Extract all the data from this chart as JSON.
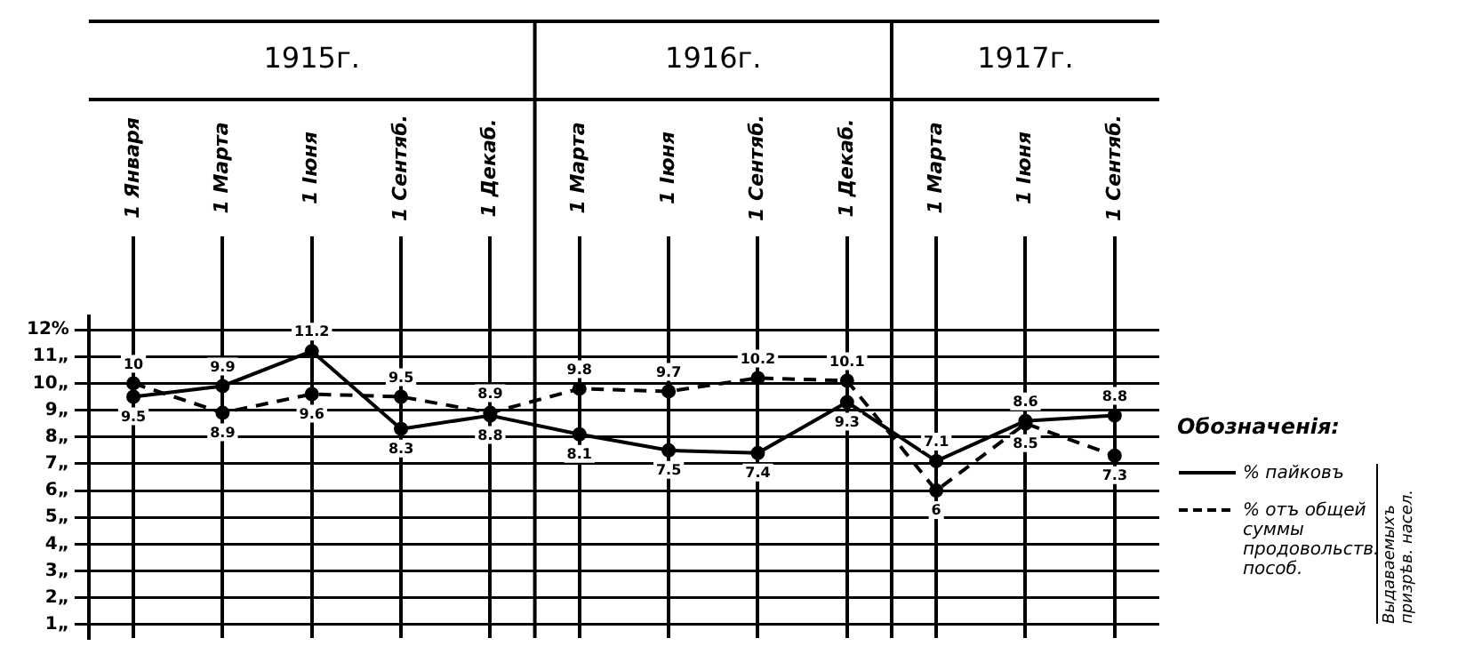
{
  "chart_data": {
    "type": "line",
    "categories": [
      "1 Января",
      "1 Марта",
      "1 Іюня",
      "1 Сентяб.",
      "1 Декаб.",
      "1 Марта",
      "1 Іюня",
      "1 Сентяб.",
      "1 Декаб.",
      "1 Марта",
      "1 Іюня",
      "1 Сентяб."
    ],
    "series": [
      {
        "name": "% пайковъ",
        "color": "#000000",
        "line_style": "solid",
        "values": [
          9.5,
          9.9,
          11.2,
          8.3,
          8.8,
          8.1,
          7.5,
          7.4,
          9.3,
          7.1,
          8.6,
          8.8
        ]
      },
      {
        "name": "% отъ общей суммы продовольств. пособ.",
        "color": "#000000",
        "line_style": "dashed",
        "values": [
          10,
          8.9,
          9.6,
          9.5,
          8.9,
          9.8,
          9.7,
          10.2,
          10.1,
          6,
          8.5,
          7.3
        ]
      }
    ],
    "ylim": [
      0.5,
      12.5
    ],
    "yticks": [
      {
        "value": 1,
        "label": "1„"
      },
      {
        "value": 2,
        "label": "2„"
      },
      {
        "value": 3,
        "label": "3„"
      },
      {
        "value": 4,
        "label": "4„"
      },
      {
        "value": 5,
        "label": "5„"
      },
      {
        "value": 6,
        "label": "6„"
      },
      {
        "value": 7,
        "label": "7„"
      },
      {
        "value": 8,
        "label": "8„"
      },
      {
        "value": 9,
        "label": "9„"
      },
      {
        "value": 10,
        "label": "10„"
      },
      {
        "value": 11,
        "label": "11„"
      },
      {
        "value": 12,
        "label": "12%"
      }
    ],
    "grid": true,
    "marker": "circle",
    "data_labels": true,
    "legend": "right",
    "legend_title": "Обозначенія:",
    "annotations": [
      "1915г.",
      "1916г.",
      "1917г.",
      "Выдаваемыхъ призрѣв. насел."
    ]
  }
}
